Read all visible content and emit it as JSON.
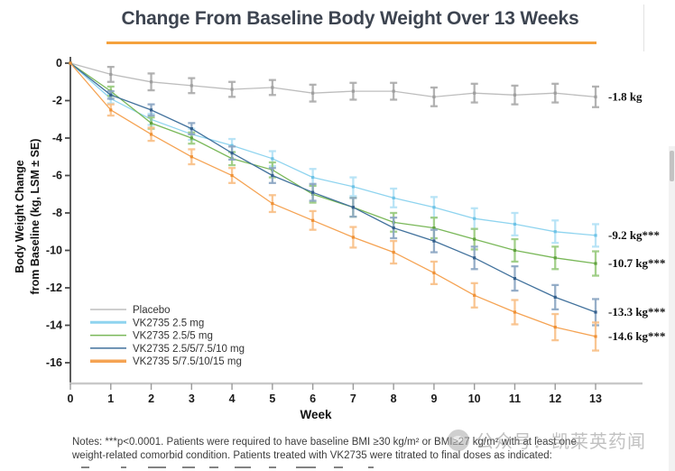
{
  "page": {
    "title": "Change From Baseline Body Weight Over 13 Weeks",
    "accent_color": "#F5A13D"
  },
  "chart_data": {
    "type": "line",
    "title": "Change From Baseline Body Weight Over 13 Weeks",
    "xlabel": "Week",
    "ylabel_line1": "Body Weight Change",
    "ylabel_line2": "from Baseline (kg, LSM ± SE)",
    "x": [
      0,
      1,
      2,
      3,
      4,
      5,
      6,
      7,
      8,
      9,
      10,
      11,
      12,
      13
    ],
    "xlim": [
      0,
      13
    ],
    "ylim": [
      -16,
      0
    ],
    "ytick_step": 2,
    "grid": false,
    "error_bars": "± SE",
    "legend_position": "inside-bottom-left",
    "series": [
      {
        "name": "Placebo",
        "color": "#bdbdbd",
        "err_color": "#ababab",
        "marker_color": "#9e9e9e",
        "legend_weight": 1.5,
        "values": [
          0,
          -0.6,
          -1.0,
          -1.2,
          -1.4,
          -1.3,
          -1.6,
          -1.5,
          -1.5,
          -1.8,
          -1.6,
          -1.7,
          -1.6,
          -1.8
        ],
        "se": [
          0,
          0.4,
          0.45,
          0.4,
          0.4,
          0.4,
          0.45,
          0.45,
          0.45,
          0.5,
          0.5,
          0.5,
          0.5,
          0.55
        ],
        "end_label": "-1.8 kg"
      },
      {
        "name": "VK2735 2.5 mg",
        "color": "#8fd4ef",
        "err_color": "#b3e2f6",
        "marker_color": "#6fc3e6",
        "legend_weight": 3,
        "values": [
          0,
          -1.9,
          -3.0,
          -3.8,
          -4.4,
          -5.1,
          -6.1,
          -6.6,
          -7.2,
          -7.7,
          -8.3,
          -8.6,
          -9.0,
          -9.2
        ],
        "se": [
          0,
          0.25,
          0.3,
          0.3,
          0.35,
          0.4,
          0.45,
          0.5,
          0.5,
          0.55,
          0.55,
          0.6,
          0.6,
          0.6
        ],
        "end_label": "-9.2 kg***"
      },
      {
        "name": "VK2735 2.5/5 mg",
        "color": "#7ab859",
        "err_color": "#9acb7f",
        "marker_color": "#61a23f",
        "legend_weight": 1.5,
        "values": [
          0,
          -1.5,
          -3.2,
          -4.0,
          -5.1,
          -5.7,
          -7.0,
          -7.7,
          -8.5,
          -8.8,
          -9.4,
          -10.0,
          -10.4,
          -10.7
        ],
        "se": [
          0,
          0.25,
          0.3,
          0.3,
          0.35,
          0.4,
          0.45,
          0.5,
          0.5,
          0.55,
          0.55,
          0.6,
          0.6,
          0.65
        ],
        "end_label": "-10.7 kg***"
      },
      {
        "name": "VK2735 2.5/5/7.5/10 mg",
        "color": "#41719c",
        "err_color": "#8ba6c3",
        "marker_color": "#35608d",
        "legend_weight": 1.5,
        "values": [
          0,
          -1.7,
          -2.5,
          -3.5,
          -4.8,
          -6.0,
          -6.9,
          -7.7,
          -8.8,
          -9.5,
          -10.4,
          -11.5,
          -12.5,
          -13.3
        ],
        "se": [
          0,
          0.2,
          0.3,
          0.3,
          0.35,
          0.4,
          0.45,
          0.5,
          0.55,
          0.6,
          0.6,
          0.65,
          0.65,
          0.7
        ],
        "end_label": "-13.3 kg***"
      },
      {
        "name": "VK2735 5/7.5/10/15 mg",
        "color": "#f5a353",
        "err_color": "#f9c088",
        "marker_color": "#ef9136",
        "legend_weight": 3.5,
        "values": [
          0,
          -2.5,
          -3.8,
          -5.0,
          -6.0,
          -7.5,
          -8.4,
          -9.3,
          -10.1,
          -11.2,
          -12.4,
          -13.3,
          -14.1,
          -14.6
        ],
        "se": [
          0,
          0.3,
          0.35,
          0.4,
          0.4,
          0.45,
          0.5,
          0.55,
          0.6,
          0.6,
          0.65,
          0.65,
          0.7,
          0.75
        ],
        "end_label": "-14.6 kg***"
      }
    ]
  },
  "notes": {
    "line1": "Notes: ***p<0.0001. Patients were required to have baseline BMI ≥30 kg/m² or BMI≥27 kg/m² with at least one",
    "line2": "weight-related comorbid condition. Patients treated with VK2735 were titrated to final doses as indicated:"
  },
  "watermark": {
    "text": "公众号：凯莱英药闻"
  }
}
